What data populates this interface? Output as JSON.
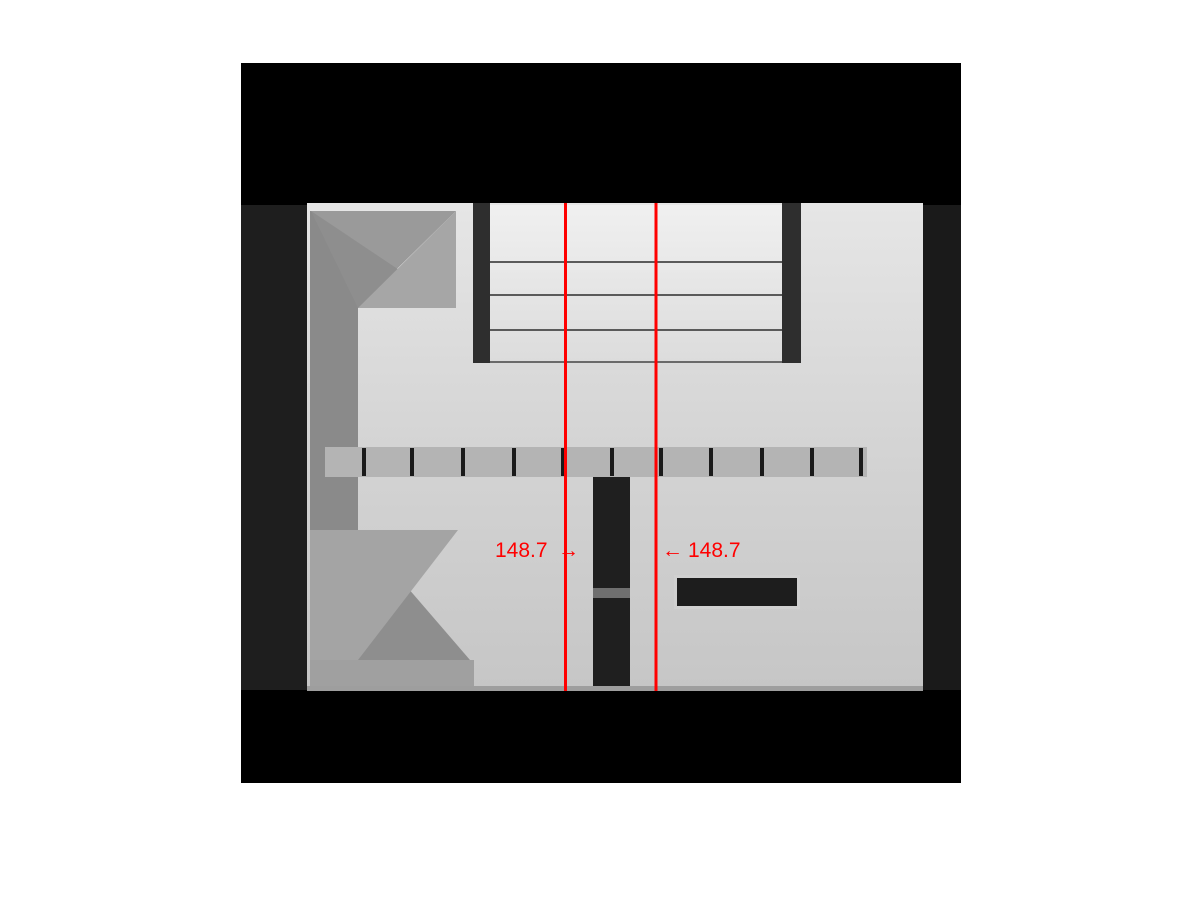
{
  "figure": {
    "background": "#ffffff",
    "scan_background": "#000000",
    "marker_color": "#ff0000"
  },
  "markers": {
    "left_label": "148.7",
    "right_label": "148.7",
    "left_arrow": "→",
    "right_arrow": "←"
  }
}
